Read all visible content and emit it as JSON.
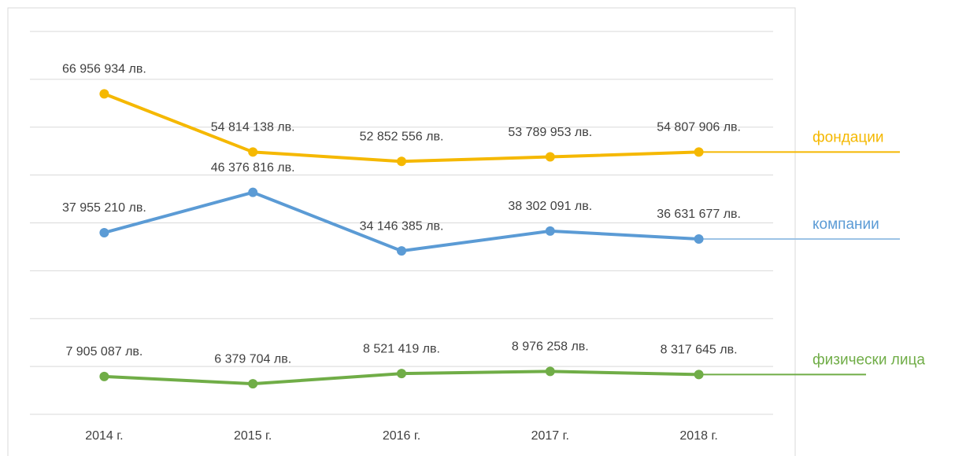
{
  "chart_data": {
    "type": "line",
    "categories": [
      "2014 г.",
      "2015 г.",
      "2016 г.",
      "2017 г.",
      "2018 г."
    ],
    "series": [
      {
        "name": "фондации",
        "color": "#f5b800",
        "values": [
          66956934,
          54814138,
          52852556,
          53789953,
          54807906
        ],
        "value_labels": [
          "66 956 934 лв.",
          "54 814 138 лв.",
          "52 852 556 лв.",
          "53 789 953 лв.",
          "54 807 906 лв."
        ]
      },
      {
        "name": "компании",
        "color": "#5b9bd5",
        "values": [
          37955210,
          46376816,
          34146385,
          38302091,
          36631677
        ],
        "value_labels": [
          "37 955 210 лв.",
          "46 376 816 лв.",
          "34 146 385 лв.",
          "38 302 091 лв.",
          "36 631 677 лв."
        ]
      },
      {
        "name": "физически лица",
        "color": "#70ad47",
        "values": [
          7905087,
          6379704,
          8521419,
          8976258,
          8317645
        ],
        "value_labels": [
          "7 905 087 лв.",
          "6 379 704 лв.",
          "8 521 419 лв.",
          "8 976 258 лв.",
          "8 317 645 лв."
        ]
      }
    ],
    "ylim": [
      0,
      80000000
    ],
    "yticks": [
      0,
      10000000,
      20000000,
      30000000,
      40000000,
      50000000,
      60000000,
      70000000,
      80000000
    ],
    "grid": true
  }
}
